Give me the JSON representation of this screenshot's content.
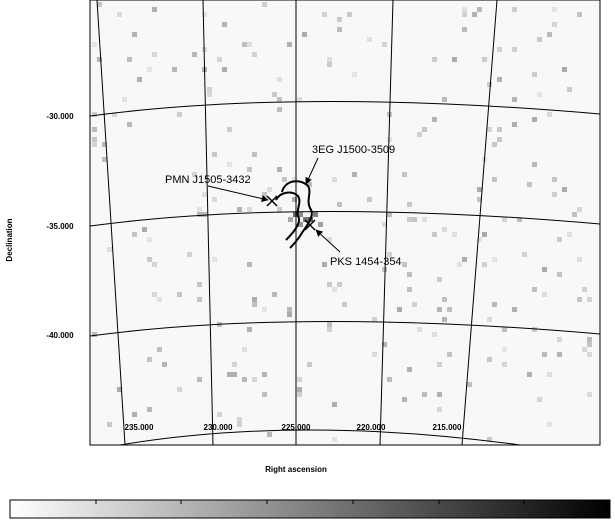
{
  "figure": {
    "y_label": "Declination",
    "x_label": "Right ascension",
    "dec_labels": [
      "-30.000",
      "-35.000",
      "-40.000"
    ],
    "ra_labels": [
      "235.000",
      "230.000",
      "225.000",
      "220.000",
      "215.000"
    ],
    "sources": [
      "3EG J1500-3509",
      "PMN J1505-3432",
      "PKS 1454-354"
    ]
  }
}
